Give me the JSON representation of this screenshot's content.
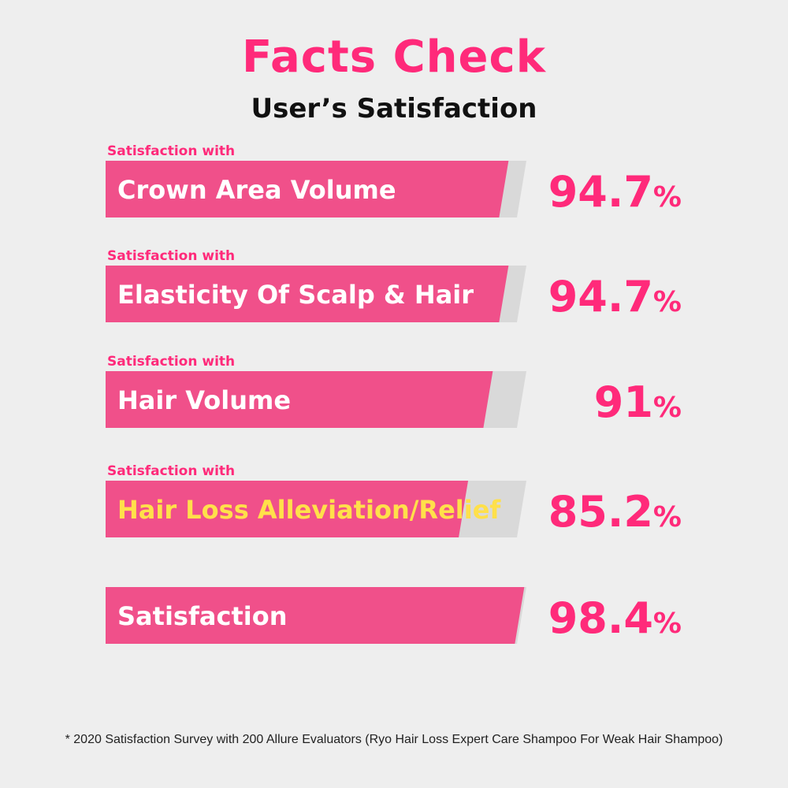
{
  "header": {
    "title": "Facts Check",
    "subtitle": "User’s Satisfaction"
  },
  "chart_data": {
    "type": "bar",
    "orientation": "horizontal",
    "title": "Facts Check",
    "subtitle": "User’s Satisfaction",
    "value_unit": "%",
    "xlim": [
      0,
      100
    ],
    "rows": [
      {
        "prefix": "Satisfaction with",
        "label": "Crown Area Volume",
        "value": 94.7,
        "display": "94.7"
      },
      {
        "prefix": "Satisfaction with",
        "label": "Elasticity Of Scalp & Hair",
        "value": 94.7,
        "display": "94.7"
      },
      {
        "prefix": "Satisfaction with",
        "label": "Hair Volume",
        "value": 91,
        "display": "91"
      },
      {
        "prefix": "Satisfaction with",
        "label": "Hair Loss Alleviation/Relief",
        "value": 85.2,
        "display": "85.2",
        "highlight": true
      },
      {
        "prefix": "",
        "label": "Satisfaction",
        "value": 98.4,
        "display": "98.4"
      }
    ]
  },
  "colors": {
    "bar": "#f0508a",
    "track": "#d9d9d9",
    "value": "#ff2a7a",
    "prefix": "#ff2a7a",
    "label": "#ffffff",
    "highlight_label": "#ffe04a"
  },
  "footnote": "* 2020 Satisfaction Survey with 200 Allure Evaluators (Ryo Hair Loss Expert Care Shampoo For Weak Hair Shampoo)"
}
